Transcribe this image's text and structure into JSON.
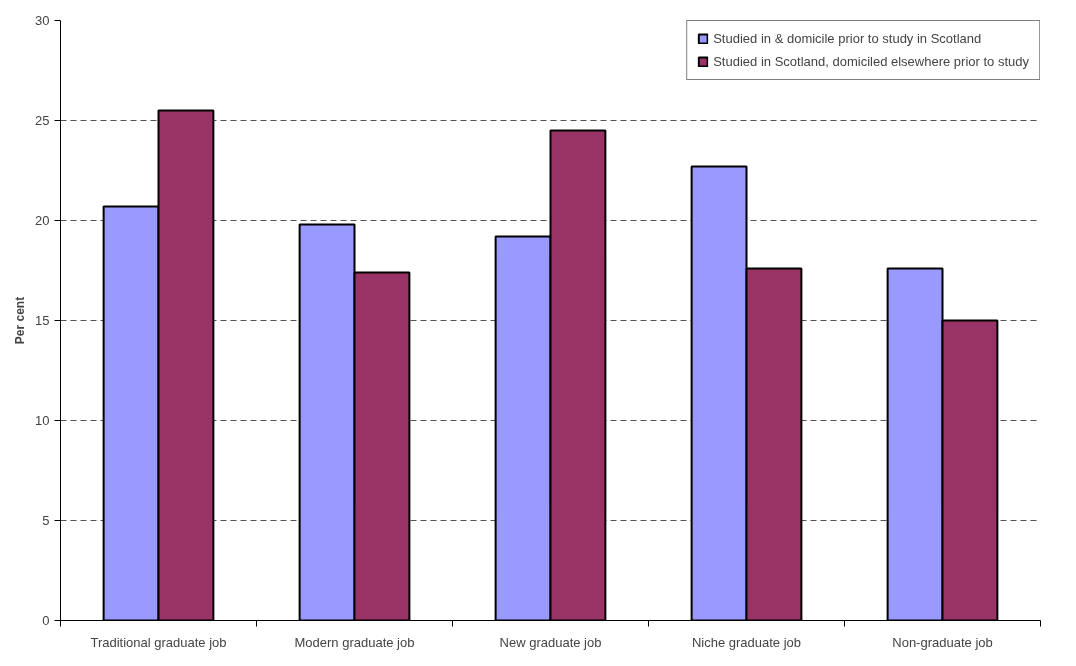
{
  "chart_data": {
    "type": "bar",
    "ylabel": "Per cent",
    "categories": [
      "Traditional graduate job",
      "Modern graduate job",
      "New graduate job",
      "Niche graduate job",
      "Non-graduate job"
    ],
    "series": [
      {
        "name": "Studied in & domicile prior to study in Scotland",
        "color": "#9999ff",
        "values": [
          20.7,
          19.8,
          19.2,
          22.7,
          17.6
        ]
      },
      {
        "name": "Studied in Scotland, domiciled elsewhere prior to study",
        "color": "#993366",
        "values": [
          25.5,
          17.4,
          24.5,
          17.6,
          15.0
        ]
      }
    ],
    "ylim": [
      0,
      30
    ],
    "yticks": [
      0,
      5,
      10,
      15,
      20,
      25,
      30
    ],
    "grid": "y",
    "legend": "top right"
  }
}
